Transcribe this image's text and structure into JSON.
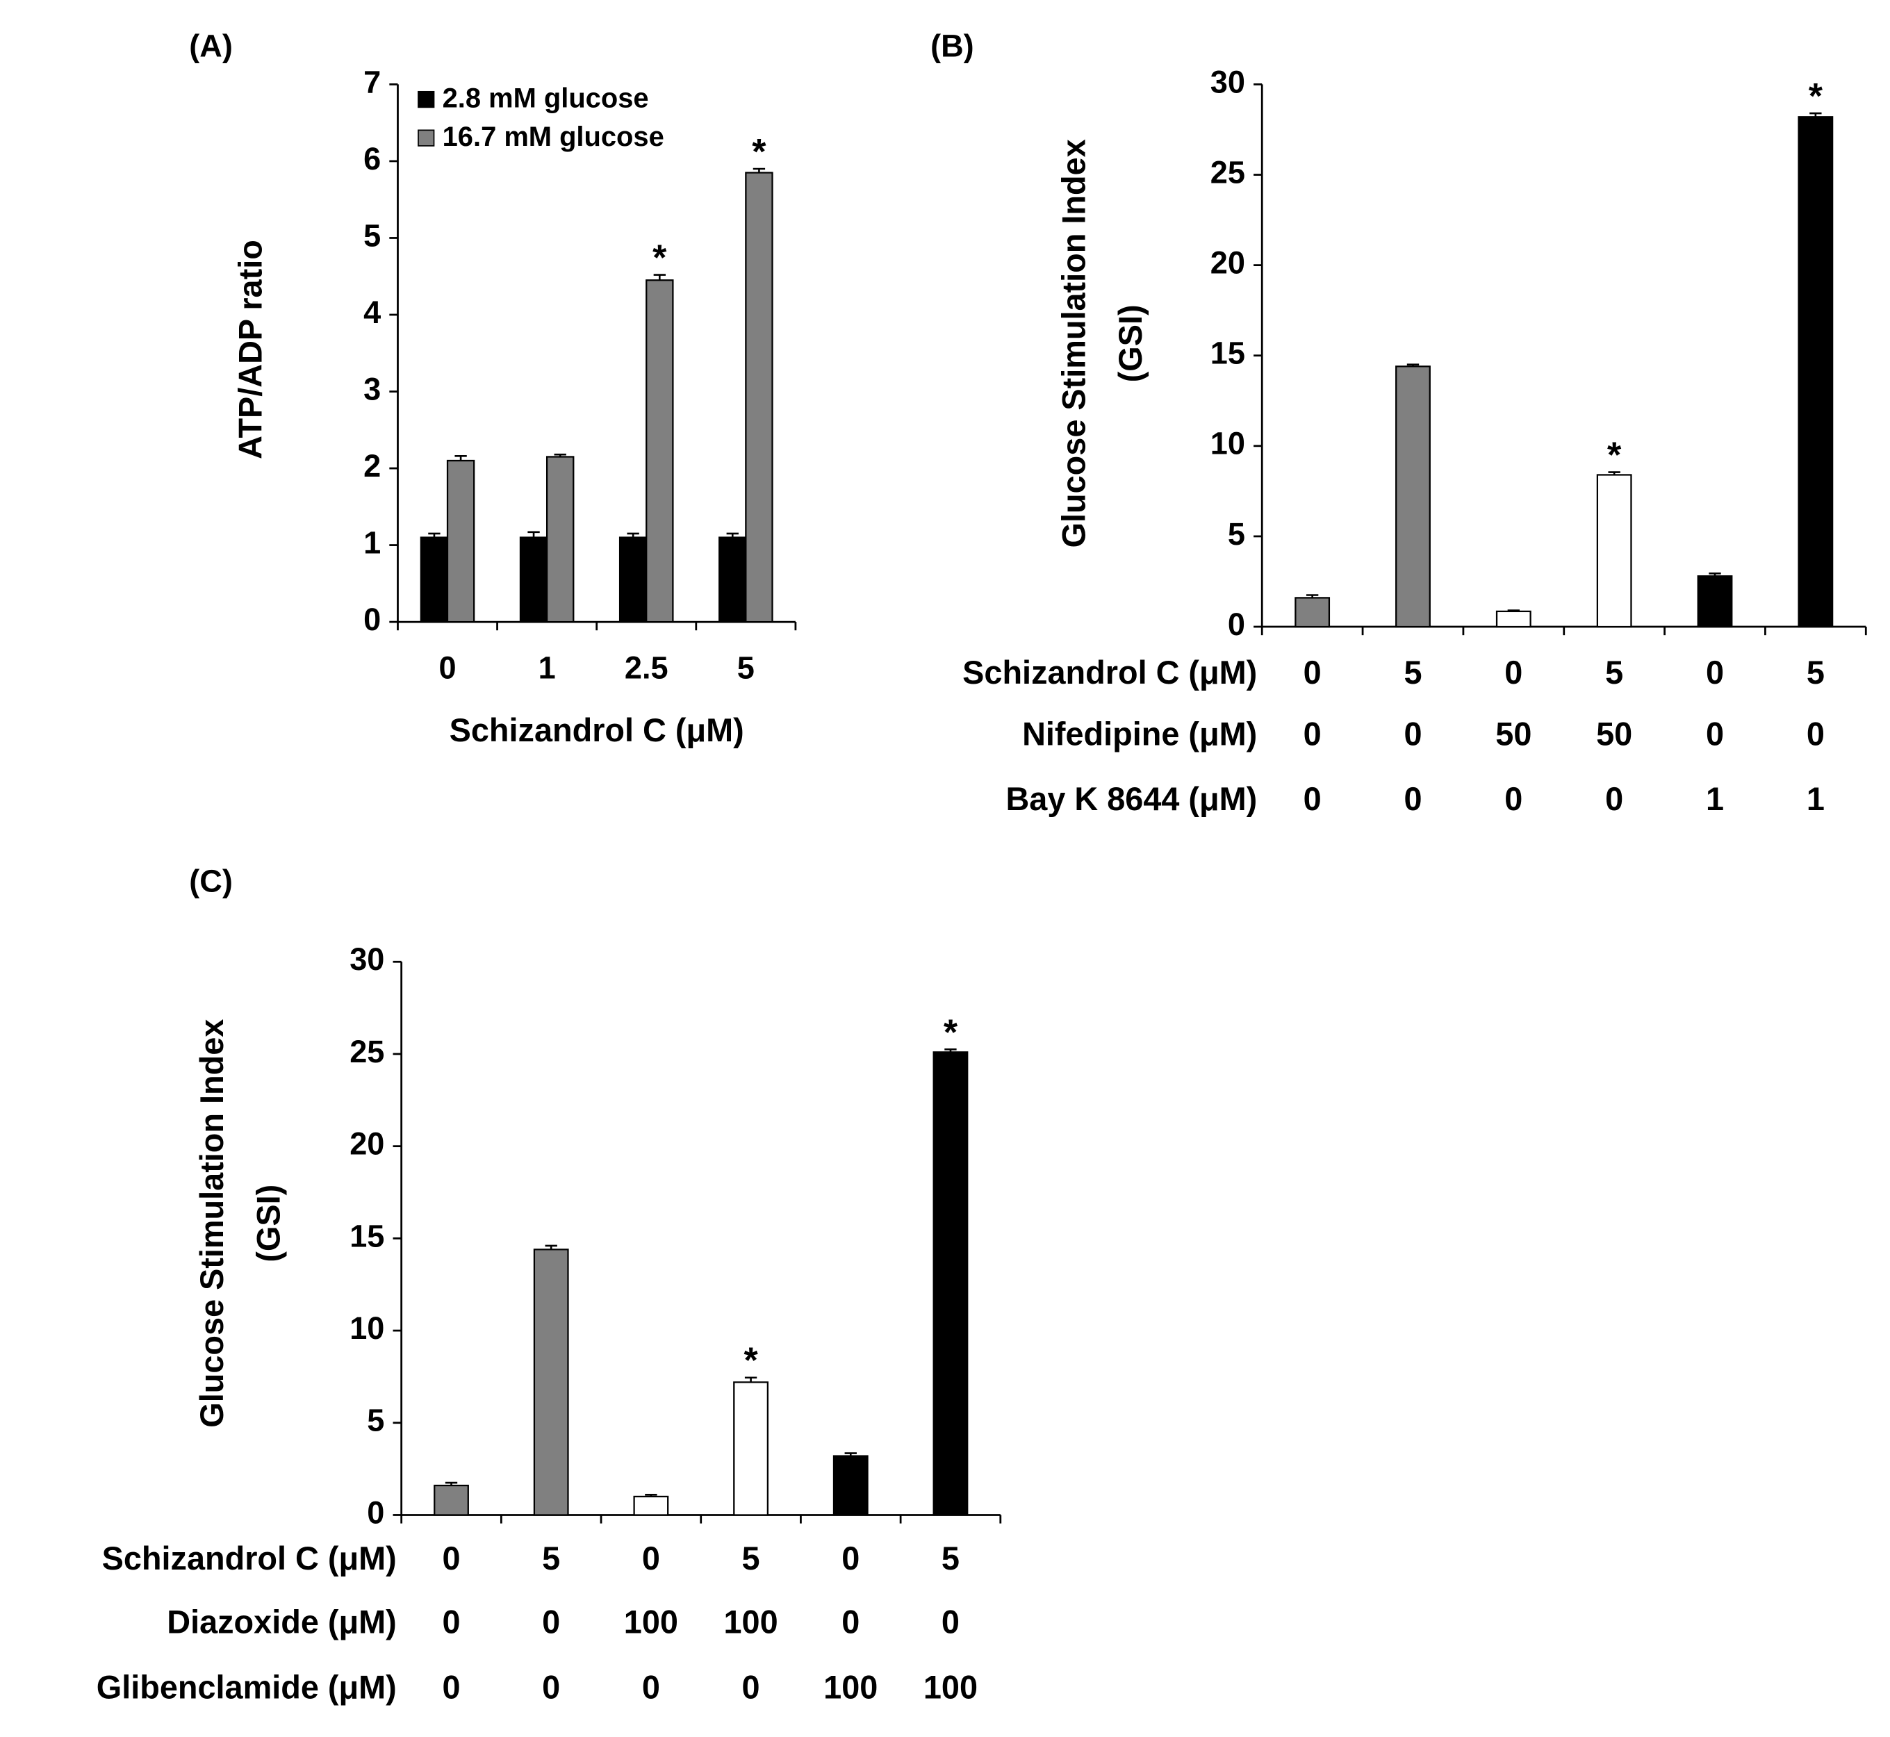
{
  "chart_data": [
    {
      "type": "bar",
      "panel_label": "(A)",
      "xlabel": "Schizandrol C (μM)",
      "ylabel": "ATP/ADP ratio",
      "categories": [
        "0",
        "1",
        "2.5",
        "5"
      ],
      "ylim": [
        0,
        7
      ],
      "yticks": [
        0,
        1,
        2,
        3,
        4,
        5,
        6,
        7
      ],
      "series": [
        {
          "name": "2.8 mM glucose",
          "color": "#000000",
          "values": [
            1.1,
            1.1,
            1.1,
            1.1
          ],
          "errors": [
            0.05,
            0.07,
            0.05,
            0.05
          ],
          "significance": [
            null,
            null,
            null,
            null
          ]
        },
        {
          "name": "16.7 mM glucose",
          "color": "#808080",
          "values": [
            2.1,
            2.15,
            4.45,
            5.85
          ],
          "errors": [
            0.06,
            0.03,
            0.07,
            0.05
          ],
          "significance": [
            null,
            null,
            "*",
            "*"
          ]
        }
      ]
    },
    {
      "type": "bar",
      "panel_label": "(B)",
      "ylabel": [
        "Glucose Stimulation Index",
        "(GSI)"
      ],
      "ylim": [
        0,
        30
      ],
      "yticks": [
        0,
        5,
        10,
        15,
        20,
        25,
        30
      ],
      "condition_rows": [
        {
          "label": "Schizandrol C (μM)",
          "values": [
            0,
            5,
            0,
            5,
            0,
            5
          ]
        },
        {
          "label": "Nifedipine (μM)",
          "values": [
            0,
            0,
            50,
            50,
            0,
            0
          ]
        },
        {
          "label": "Bay K 8644 (μM)",
          "values": [
            0,
            0,
            0,
            0,
            1,
            1
          ]
        }
      ],
      "series": [
        {
          "colors": [
            "#808080",
            "#808080",
            "#ffffff",
            "#ffffff",
            "#000000",
            "#000000"
          ],
          "values": [
            1.6,
            14.4,
            0.85,
            8.4,
            2.8,
            28.2
          ],
          "errors": [
            0.15,
            0.1,
            0.05,
            0.15,
            0.15,
            0.2
          ],
          "significance": [
            null,
            null,
            null,
            "*",
            null,
            "*"
          ]
        }
      ]
    },
    {
      "type": "bar",
      "panel_label": "(C)",
      "ylabel": [
        "Glucose Stimulation Index",
        "(GSI)"
      ],
      "ylim": [
        0,
        30
      ],
      "yticks": [
        0,
        5,
        10,
        15,
        20,
        25,
        30
      ],
      "condition_rows": [
        {
          "label": "Schizandrol C (μM)",
          "values": [
            0,
            5,
            0,
            5,
            0,
            5
          ]
        },
        {
          "label": "Diazoxide (μM)",
          "values": [
            0,
            0,
            100,
            100,
            0,
            0
          ]
        },
        {
          "label": "Glibenclamide (μM)",
          "values": [
            0,
            0,
            0,
            0,
            100,
            100
          ]
        }
      ],
      "series": [
        {
          "colors": [
            "#808080",
            "#808080",
            "#ffffff",
            "#ffffff",
            "#000000",
            "#000000"
          ],
          "values": [
            1.6,
            14.4,
            1.0,
            7.2,
            3.2,
            25.1
          ],
          "errors": [
            0.15,
            0.2,
            0.1,
            0.25,
            0.15,
            0.15
          ],
          "significance": [
            null,
            null,
            null,
            "*",
            null,
            "*"
          ]
        }
      ]
    }
  ]
}
